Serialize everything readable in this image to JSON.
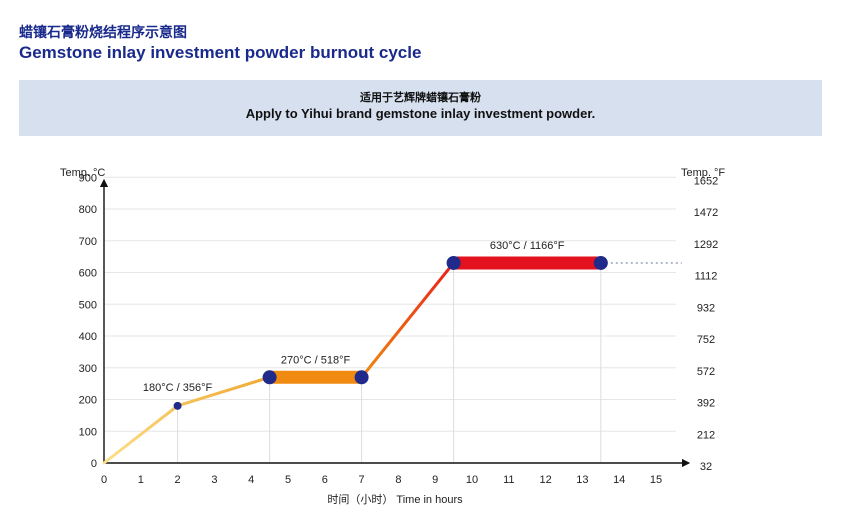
{
  "title_cn": "蜡镶石膏粉烧结程序示意图",
  "title_en": "Gemstone inlay investment powder burnout cycle",
  "banner_cn": "适用于艺辉牌蜡镶石膏粉",
  "banner_en": "Apply to Yihui brand gemstone inlay investment powder.",
  "chart_data": {
    "type": "line",
    "ylabel_left": "Temp. °C",
    "ylabel_right": "Temp. °F",
    "xlabel": "时间（小时） Time in hours",
    "xlim": [
      0,
      15
    ],
    "ylim": [
      0,
      900
    ],
    "x_ticks": [
      0,
      1,
      2,
      3,
      4,
      5,
      6,
      7,
      8,
      9,
      10,
      11,
      12,
      13,
      14,
      15
    ],
    "y_ticks_c": [
      0,
      100,
      200,
      300,
      400,
      500,
      600,
      700,
      800,
      900
    ],
    "y_ticks_f": [
      32,
      212,
      392,
      572,
      752,
      932,
      1112,
      1292,
      1472,
      1652
    ],
    "grid": "horizontal",
    "segments": [
      {
        "from": [
          0,
          0
        ],
        "to": [
          2,
          180
        ],
        "kind": "ramp",
        "color_start": "#fce08a",
        "color_end": "#f5c35a"
      },
      {
        "from": [
          2,
          180
        ],
        "to": [
          4.5,
          270
        ],
        "kind": "ramp",
        "color_start": "#f5c35a",
        "color_end": "#f0a830"
      },
      {
        "from": [
          4.5,
          270
        ],
        "to": [
          7,
          270
        ],
        "kind": "hold",
        "color": "#f08a10"
      },
      {
        "from": [
          7,
          270
        ],
        "to": [
          9.5,
          630
        ],
        "kind": "ramp",
        "color_start": "#f08a10",
        "color_end": "#e8201a"
      },
      {
        "from": [
          9.5,
          630
        ],
        "to": [
          13.5,
          630
        ],
        "kind": "hold",
        "color": "#e3121e"
      }
    ],
    "points": [
      {
        "x": 2,
        "y": 180,
        "size": "small"
      },
      {
        "x": 4.5,
        "y": 270,
        "size": "large"
      },
      {
        "x": 7,
        "y": 270,
        "size": "large"
      },
      {
        "x": 9.5,
        "y": 630,
        "size": "large"
      },
      {
        "x": 13.5,
        "y": 630,
        "size": "large"
      }
    ],
    "annotations": [
      {
        "text": "180°C / 356°F",
        "x": 2,
        "y": 180
      },
      {
        "text": "270°C / 518°F",
        "x": 5.75,
        "y": 270
      },
      {
        "text": "630°C / 1166°F",
        "x": 11.5,
        "y": 630
      }
    ],
    "dotted_extension": {
      "from_x": 13.5,
      "to_x": 15.7,
      "y": 630
    },
    "colors": {
      "axis": "#111111",
      "grid": "#e6e6e6",
      "guide": "#dddddd",
      "point": "#1f2a8a",
      "dotted": "#9aa3b5"
    }
  }
}
